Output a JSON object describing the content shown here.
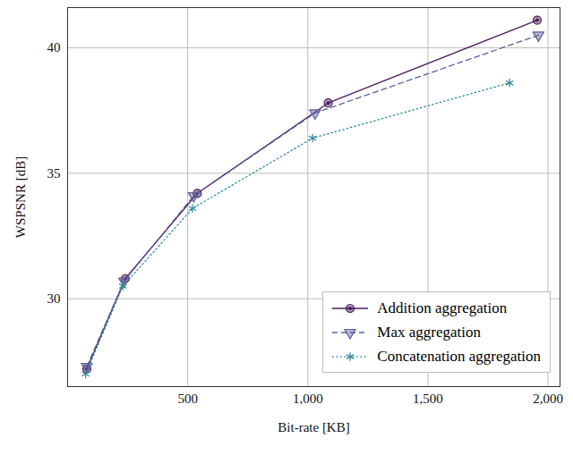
{
  "chart_data": {
    "type": "line",
    "x_label": "Bit-rate [KB]",
    "y_label": "WSPSNR [dB]",
    "xlim": [
      0,
      2050
    ],
    "ylim": [
      26.5,
      41.6
    ],
    "xticks": [
      500,
      {
        "value": 1000,
        "label": "1,000"
      },
      {
        "value": 1500,
        "label": "1,500"
      },
      {
        "value": 2000,
        "label": "2,000"
      }
    ],
    "yticks": [
      30,
      35,
      40
    ],
    "grid": true,
    "legend": "lower right",
    "series": [
      {
        "name": "Addition aggregation",
        "color": "#4b1d5b",
        "marker": "circle",
        "line_style": "solid",
        "x": [
          80,
          240,
          540,
          1085,
          1955
        ],
        "values": [
          27.2,
          30.8,
          34.2,
          37.8,
          41.1
        ]
      },
      {
        "name": "Max aggregation",
        "color": "#5b5f9e",
        "marker": "triangle_down",
        "line_style": "dashed",
        "x": [
          80,
          235,
          525,
          1030,
          1960
        ],
        "values": [
          27.3,
          30.7,
          34.1,
          37.4,
          40.5
        ]
      },
      {
        "name": "Concatenation aggregation",
        "color": "#2e8b9a",
        "marker": "asterisk",
        "line_style": "dotted",
        "x": [
          75,
          230,
          520,
          1020,
          1840
        ],
        "values": [
          27.0,
          30.5,
          33.6,
          36.4,
          38.6
        ]
      }
    ]
  }
}
